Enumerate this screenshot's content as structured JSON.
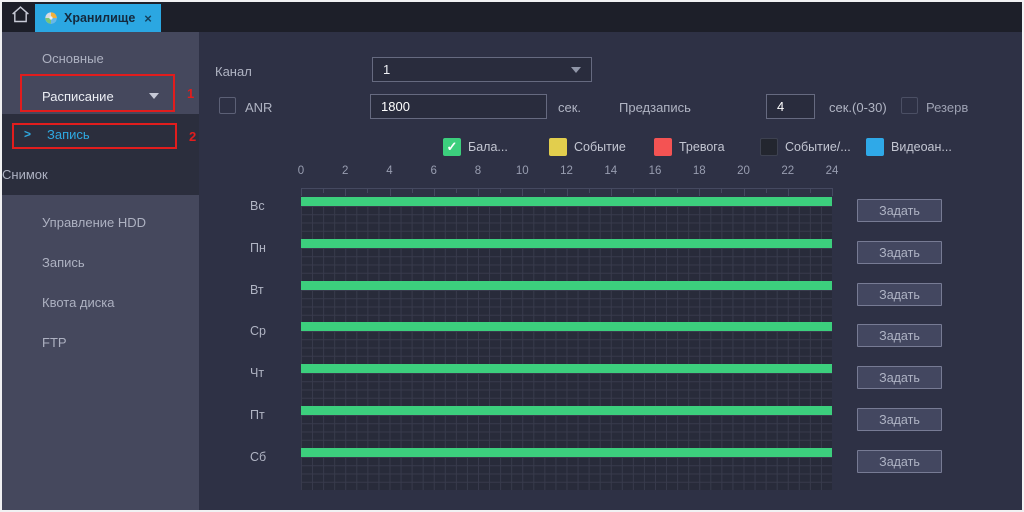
{
  "window": {
    "tab_bar": {
      "tab_label": "Хранилище",
      "close_glyph": "×"
    }
  },
  "colors": {
    "accent_blue": "#2ba7e2",
    "annotation_red": "#e11d1d",
    "bar_green": "#3ccf7d"
  },
  "sidebar": {
    "items": [
      {
        "label": "Основные"
      },
      {
        "label": "Расписание",
        "expanded": true
      },
      {
        "label": "Запись",
        "selected": true
      },
      {
        "label": "Снимок"
      },
      {
        "label": "Управление HDD"
      },
      {
        "label": "Запись"
      },
      {
        "label": "Квота диска"
      },
      {
        "label": "FTP"
      }
    ],
    "selected_arrow": ">",
    "annotations": [
      {
        "number": "1"
      },
      {
        "number": "2"
      }
    ]
  },
  "form": {
    "channel_label": "Канал",
    "channel_value": "1",
    "anr_label": "ANR",
    "anr_value": "1800",
    "anr_unit": "сек.",
    "prerecord_label": "Предзапись",
    "prerecord_value": "4",
    "prerecord_unit": "сек.(0-30)",
    "redundancy_label": "Резерв"
  },
  "legend": {
    "check_glyph": "✓",
    "items": [
      {
        "label": "Бала...",
        "color": "#3ccf7d",
        "checked": true
      },
      {
        "label": "Событие",
        "color": "#e2ce4d",
        "checked": false
      },
      {
        "label": "Тревога",
        "color": "#f45353",
        "checked": false
      },
      {
        "label": "Событие/...",
        "color": "#23262f",
        "checked": false
      },
      {
        "label": "Видеоан...",
        "color": "#2fa9e8",
        "checked": false
      }
    ]
  },
  "schedule": {
    "hour_labels": [
      "0",
      "2",
      "4",
      "6",
      "8",
      "10",
      "12",
      "14",
      "16",
      "18",
      "20",
      "22",
      "24"
    ],
    "hours_range": [
      0,
      24
    ],
    "days": [
      "Вс",
      "Пн",
      "Вт",
      "Ср",
      "Чт",
      "Пт",
      "Сб"
    ],
    "set_button_label": "Задать",
    "bars": [
      {
        "day": "Вс",
        "start": 0,
        "end": 24
      },
      {
        "day": "Пн",
        "start": 0,
        "end": 24
      },
      {
        "day": "Вт",
        "start": 0,
        "end": 24
      },
      {
        "day": "Ср",
        "start": 0,
        "end": 24
      },
      {
        "day": "Чт",
        "start": 0,
        "end": 24
      },
      {
        "day": "Пт",
        "start": 0,
        "end": 24
      },
      {
        "day": "Сб",
        "start": 0,
        "end": 24
      }
    ]
  }
}
